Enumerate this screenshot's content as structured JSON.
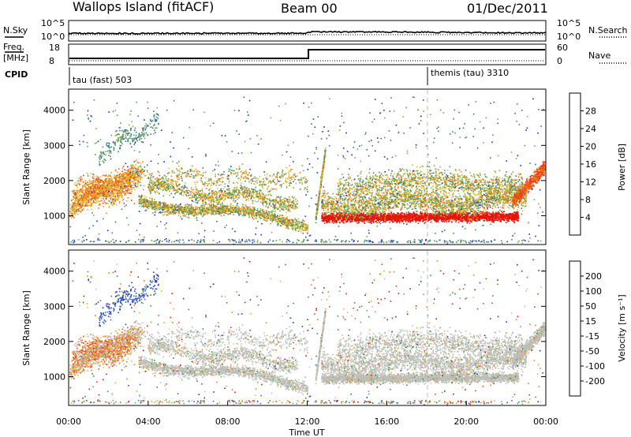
{
  "header": {
    "station": "Wallops Island (fitACF)",
    "beam": "Beam 00",
    "date": "01/Dec/2011"
  },
  "nsky_panel": {
    "label": "N.Sky",
    "ticks_left": [
      "10^5",
      "10^0"
    ],
    "right_label": "N.Search",
    "ticks_right": [
      "10^5",
      "10^0"
    ]
  },
  "freq_panel": {
    "label_line1": "Freq.",
    "label_line2": "[MHz]",
    "ticks_left": [
      "18",
      "8"
    ],
    "right_label": "Nave",
    "ticks_right": [
      "60",
      "0"
    ],
    "cpid_label": "CPID",
    "cpid_modes": [
      {
        "name": "tau (fast) 503",
        "start_hour": 0
      },
      {
        "name": "themis (tau) 3310",
        "start_hour": 18
      }
    ]
  },
  "xaxis": {
    "label": "Time UT",
    "ticks": [
      "00:00",
      "04:00",
      "08:00",
      "12:00",
      "16:00",
      "20:00",
      "00:00"
    ]
  },
  "colorbars": {
    "power": {
      "title": "Power [dB]",
      "ticks": [
        "28",
        "24",
        "20",
        "16",
        "12",
        "8",
        "4"
      ],
      "colors": [
        "#0b2bd9",
        "#2f63b4",
        "#3f7a74",
        "#4e9a4f",
        "#6fae4a",
        "#c8c238",
        "#e6b826",
        "#f29a24",
        "#f2741c",
        "#ee3a12",
        "#e61408"
      ]
    },
    "velocity": {
      "title": "Velocity [m s⁻¹]",
      "ticks": [
        "200",
        "100",
        "50",
        "15",
        "-15",
        "-50",
        "-100",
        "-200"
      ],
      "colors": [
        "#1a3ab8",
        "#3f6ca8",
        "#3a8a52",
        "#63b74a",
        "#bebeb8",
        "#f2a51f",
        "#f17a1a",
        "#ec4515",
        "#e8100a"
      ]
    }
  },
  "chart_data": [
    {
      "type": "heatmap",
      "title": "Power [dB]",
      "xlabel": "Time UT",
      "ylabel": "Slant Range [km]",
      "xlim": [
        0,
        24
      ],
      "ylim": [
        180,
        4600
      ],
      "yticks": [
        "4000",
        "3000",
        "2000",
        "1000"
      ],
      "clim": [
        0,
        30
      ],
      "ground_scatter_color": "#bebeb8",
      "features": [
        {
          "t_start": 0,
          "t_end": 3.5,
          "range_center_start": 1200,
          "range_center_end": 2300,
          "power_db": 24
        },
        {
          "t_start": 3.5,
          "t_end": 12,
          "range_center_start": 1400,
          "range_center_end": 750,
          "power_db": 22
        },
        {
          "t_start": 12.7,
          "t_end": 22.5,
          "range_center_start": 1000,
          "range_center_end": 1050,
          "power_db": 30
        },
        {
          "t_start": 22.5,
          "t_end": 24,
          "range_center_start": 1500,
          "range_center_end": 2400,
          "power_db": 26
        }
      ]
    },
    {
      "type": "heatmap",
      "title": "Velocity [m s⁻¹]",
      "xlabel": "Time UT",
      "ylabel": "Slant Range [km]",
      "xlim": [
        0,
        24
      ],
      "ylim": [
        180,
        4600
      ],
      "yticks": [
        "4000",
        "3000",
        "2000",
        "1000"
      ],
      "clim": [
        -200,
        200
      ],
      "features": [
        {
          "t_start": 1.5,
          "t_end": 4.5,
          "range_center_start": 3200,
          "range_center_end": 3600,
          "velocity_ms": 180
        },
        {
          "t_start": 0,
          "t_end": 12,
          "range_center_start": 1300,
          "range_center_end": 800,
          "velocity_ms": 0
        },
        {
          "t_start": 12.7,
          "t_end": 24,
          "range_center_start": 1100,
          "range_center_end": 2300,
          "velocity_ms": 0
        }
      ]
    }
  ]
}
